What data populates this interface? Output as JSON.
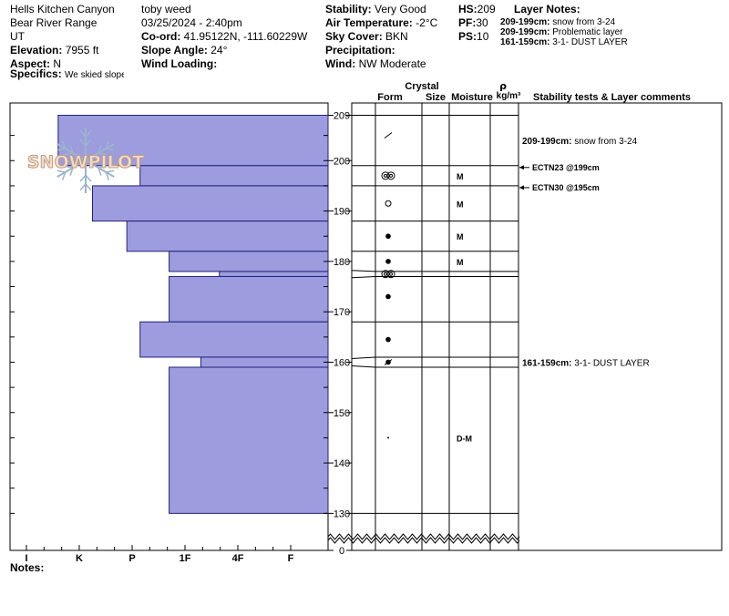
{
  "site": {
    "location": "Hells Kitchen Canyon",
    "range": "Bear River Range",
    "state": "UT",
    "elevation_label": "Elevation:",
    "elevation": "7955 ft",
    "aspect_label": "Aspect:",
    "aspect": "N",
    "specifics_label": "Specifics:",
    "specifics": "We skied slope"
  },
  "observer": {
    "name": "toby weed",
    "datetime": "03/25/2024 - 2:40pm",
    "coord_label": "Co-ord:",
    "coord": "41.95122N, -111.60229W",
    "slope_label": "Slope Angle:",
    "slope": "24°",
    "wind_loading_label": "Wind Loading:",
    "wind_loading": ""
  },
  "conditions": {
    "stability_label": "Stability:",
    "stability": "Very Good",
    "air_temp_label": "Air Temperature:",
    "air_temp": "-2°C",
    "sky_label": "Sky Cover:",
    "sky": "BKN",
    "precip_label": "Precipitation:",
    "precip": "",
    "wind_label": "Wind:",
    "wind": "NW Moderate"
  },
  "summary": {
    "hs_label": "HS:",
    "hs": "209",
    "pf_label": "PF:",
    "pf": "30",
    "ps_label": "PS:",
    "ps": "10"
  },
  "layer_notes": {
    "title": "Layer Notes:",
    "items": [
      {
        "range": "209-199cm:",
        "text": "snow from 3-24"
      },
      {
        "range": "209-199cm:",
        "text": "Problematic layer"
      },
      {
        "range": "161-159cm:",
        "text": "3-1- DUST LAYER"
      }
    ]
  },
  "columns": {
    "crystal": "Crystal",
    "form": "Form",
    "size": "Size",
    "moisture": "Moisture",
    "rho": "ρ",
    "density_unit": "kg/m³",
    "stability_comments": "Stability tests & Layer comments"
  },
  "logo_text": "SNOWPILOT",
  "notes_label": "Notes:",
  "colors": {
    "layer_fill": "#9c9cde",
    "layer_stroke": "#22227a",
    "logo_fill": "#f2dcc8",
    "logo_stroke": "#c59c80",
    "flake": "#9cb4cc"
  },
  "chart_data": {
    "type": "snow-profile",
    "hardness_axis": [
      "I",
      "K",
      "P",
      "1F",
      "4F",
      "F"
    ],
    "height_ticks": [
      209,
      200,
      190,
      180,
      170,
      160,
      150,
      140,
      130,
      0
    ],
    "height_range_cm": [
      130,
      209
    ],
    "layers": [
      {
        "top": 209,
        "bottom": 199,
        "hardness": 0.6,
        "form": "precip-particles",
        "moisture": ""
      },
      {
        "top": 199,
        "bottom": 195,
        "hardness": 2.15,
        "form": "melt-forms-clustered",
        "moisture": "M"
      },
      {
        "top": 195,
        "bottom": 188,
        "hardness": 1.25,
        "form": "rounded-polycrystals",
        "moisture": "M"
      },
      {
        "top": 188,
        "bottom": 182,
        "hardness": 1.9,
        "form": "melt-forms",
        "moisture": "M"
      },
      {
        "top": 182,
        "bottom": 178,
        "hardness": 2.7,
        "form": "melt-forms",
        "moisture": "M"
      },
      {
        "top": 178,
        "bottom": 177,
        "hardness": 3.65,
        "form": "melt-forms-clustered",
        "moisture": ""
      },
      {
        "top": 177,
        "bottom": 168,
        "hardness": 2.7,
        "form": "melt-forms",
        "moisture": ""
      },
      {
        "top": 168,
        "bottom": 161,
        "hardness": 2.15,
        "form": "melt-forms",
        "moisture": ""
      },
      {
        "top": 161,
        "bottom": 159,
        "hardness": 3.3,
        "form": "melt-freeze-crust",
        "moisture": ""
      },
      {
        "top": 159,
        "bottom": 130,
        "hardness": 2.7,
        "form": "dot",
        "moisture": "D-M"
      }
    ],
    "stability_tests": [
      {
        "label": "ECTN23 @199cm",
        "height": 199
      },
      {
        "label": "ECTN30 @195cm",
        "height": 195
      }
    ],
    "layer_comments": [
      {
        "range": "209-199cm:",
        "text": "snow from 3-24",
        "height": 204
      },
      {
        "range": "161-159cm:",
        "text": "3-1- DUST LAYER",
        "height": 160
      }
    ]
  }
}
